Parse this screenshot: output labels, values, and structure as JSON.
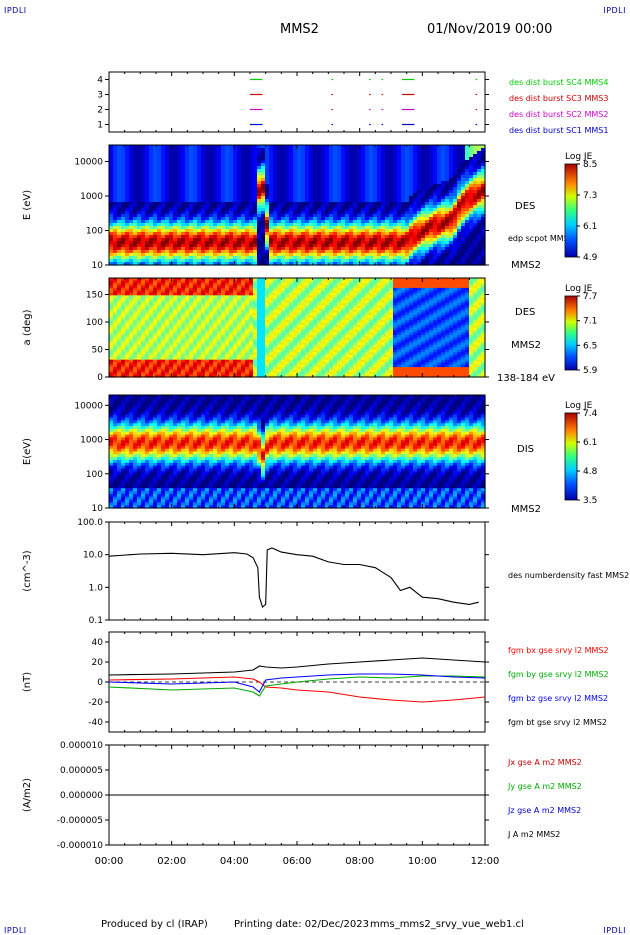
{
  "header": {
    "title": "MMS2",
    "datetime": "01/Nov/2019 00:00",
    "corner_left_top": "IPDLI",
    "corner_right_top": "IPDLI",
    "corner_left_bottom": "IPDLI",
    "corner_right_bottom": "IPDLI"
  },
  "footer": {
    "produced_by": "Produced by cl (IRAP)",
    "printing_date": "Printing date: 02/Dec/2023",
    "filename": "mms_mms2_srvy_vue_web1.cl"
  },
  "chart_data": [
    {
      "type": "scatter",
      "panel": "burst-flags",
      "ylim": [
        0.5,
        4.5
      ],
      "yticks": [
        "1",
        "2",
        "3",
        "4"
      ],
      "xlim": [
        0,
        12
      ],
      "series": [
        {
          "name": "des dist burst SC1 MMS1",
          "color": "#0000cc",
          "level": 1,
          "segments": [
            [
              4.5,
              4.9
            ],
            [
              7.1,
              7.15
            ],
            [
              8.3,
              8.35
            ],
            [
              8.7,
              8.75
            ],
            [
              9.35,
              9.75
            ],
            [
              11.7,
              11.75
            ]
          ]
        },
        {
          "name": "des dist burst SC2 MMS2",
          "color": "#cc00cc",
          "level": 2,
          "segments": [
            [
              4.5,
              4.9
            ],
            [
              7.1,
              7.15
            ],
            [
              8.3,
              8.35
            ],
            [
              8.7,
              8.75
            ],
            [
              9.35,
              9.75
            ],
            [
              11.7,
              11.75
            ]
          ]
        },
        {
          "name": "des dist burst SC3 MMS3",
          "color": "#cc0000",
          "level": 3,
          "segments": [
            [
              4.5,
              4.9
            ],
            [
              7.1,
              7.15
            ],
            [
              8.3,
              8.35
            ],
            [
              8.7,
              8.75
            ],
            [
              9.35,
              9.75
            ],
            [
              11.7,
              11.75
            ]
          ]
        },
        {
          "name": "des dist burst SC4 MMS4",
          "color": "#00cc00",
          "level": 4,
          "segments": [
            [
              4.5,
              4.9
            ],
            [
              7.1,
              7.15
            ],
            [
              8.3,
              8.35
            ],
            [
              8.7,
              8.75
            ],
            [
              9.35,
              9.75
            ],
            [
              11.7,
              11.75
            ]
          ]
        }
      ]
    },
    {
      "type": "heatmap",
      "panel": "des-energy",
      "ylabel": "E (eV)",
      "yscale": "log",
      "yticks": [
        "10",
        "100",
        "1000",
        "10000"
      ],
      "ylim": [
        10,
        30000
      ],
      "side_labels": [
        "DES",
        "MMS2"
      ],
      "overlay_label": "edp scpot MMS2",
      "colorbar": {
        "title": "Log JE",
        "range": [
          4.9,
          8.5
        ],
        "ticks": [
          "8.5",
          "7.3",
          "6.1",
          "4.9"
        ]
      },
      "peak_energy": [
        {
          "t": 0,
          "e": 45
        },
        {
          "t": 4.7,
          "e": 45
        },
        {
          "t": 4.85,
          "e": 2500
        },
        {
          "t": 5.05,
          "e": 45
        },
        {
          "t": 9.5,
          "e": 45
        },
        {
          "t": 11,
          "e": 200
        },
        {
          "t": 12,
          "e": 1500
        }
      ]
    },
    {
      "type": "heatmap",
      "panel": "des-pitch-angle",
      "ylabel": "a (deg)",
      "yticks": [
        "0",
        "50",
        "100",
        "150"
      ],
      "ylim": [
        0,
        180
      ],
      "side_labels": [
        "DES",
        "MMS2"
      ],
      "energy_range_label": "138-184 eV",
      "colorbar": {
        "title": "Log JE",
        "range": [
          5.9,
          7.7
        ],
        "ticks": [
          "7.7",
          "7.1",
          "6.5",
          "5.9"
        ]
      }
    },
    {
      "type": "heatmap",
      "panel": "dis-energy",
      "ylabel": "E(eV)",
      "yscale": "log",
      "yticks": [
        "10",
        "100",
        "1000",
        "10000"
      ],
      "ylim": [
        10,
        20000
      ],
      "side_labels": [
        "DIS",
        "MMS2"
      ],
      "colorbar": {
        "title": "Log JE",
        "range": [
          3.5,
          7.4
        ],
        "ticks": [
          "7.4",
          "6.1",
          "4.8",
          "3.5"
        ]
      },
      "peak_energy": [
        {
          "t": 0,
          "e": 800
        },
        {
          "t": 4.7,
          "e": 800
        },
        {
          "t": 4.9,
          "e": 300
        },
        {
          "t": 5.1,
          "e": 800
        },
        {
          "t": 9.6,
          "e": 800
        },
        {
          "t": 12,
          "e": 800
        }
      ]
    },
    {
      "type": "line",
      "panel": "density",
      "ylabel": "(cm^-3)",
      "yscale": "log",
      "yticks": [
        "0.1",
        "1.0",
        "10.0",
        "100.0"
      ],
      "ylim": [
        0.1,
        100
      ],
      "series": [
        {
          "name": "des numberdensity fast MMS2",
          "color": "#000000",
          "x": [
            0,
            1,
            2,
            3,
            4,
            4.4,
            4.6,
            4.75,
            4.8,
            4.9,
            5.0,
            5.05,
            5.2,
            5.5,
            6.0,
            6.5,
            7.0,
            7.5,
            8.0,
            8.5,
            9.0,
            9.3,
            9.6,
            10.0,
            10.5,
            11.0,
            11.5,
            11.8
          ],
          "y": [
            9.0,
            10.5,
            11.0,
            10.0,
            11.5,
            10.5,
            8.0,
            4.0,
            0.5,
            0.25,
            0.3,
            14.0,
            16.0,
            12.0,
            10.0,
            9.0,
            6.0,
            5.0,
            5.0,
            4.0,
            2.0,
            0.8,
            1.0,
            0.5,
            0.45,
            0.35,
            0.3,
            0.35
          ]
        }
      ]
    },
    {
      "type": "line",
      "panel": "magnetic-field",
      "ylabel": "(nT)",
      "yticks": [
        "-40",
        "-20",
        "0",
        "20",
        "40"
      ],
      "ylim": [
        -50,
        50
      ],
      "series": [
        {
          "name": "fgm bx gse srvy l2 MMS2",
          "color": "#ff0000",
          "x": [
            0,
            2,
            4,
            4.6,
            4.8,
            5.0,
            5.5,
            6,
            7,
            8,
            9,
            10,
            11,
            12
          ],
          "y": [
            2,
            3,
            5,
            3,
            0,
            -5,
            -6,
            -8,
            -10,
            -15,
            -18,
            -20,
            -18,
            -15
          ]
        },
        {
          "name": "fgm by gse srvy l2 MMS2",
          "color": "#00aa00",
          "x": [
            0,
            2,
            4,
            4.6,
            4.8,
            5.0,
            5.5,
            6,
            7,
            8,
            9,
            10,
            11,
            12
          ],
          "y": [
            -5,
            -8,
            -6,
            -10,
            -14,
            -4,
            -2,
            0,
            3,
            5,
            4,
            6,
            6,
            5
          ]
        },
        {
          "name": "fgm bz gse srvy l2 MMS2",
          "color": "#0000ff",
          "x": [
            0,
            2,
            4,
            4.6,
            4.8,
            5.0,
            5.5,
            6,
            7,
            8,
            9,
            10,
            11,
            12
          ],
          "y": [
            0,
            -2,
            0,
            -5,
            -10,
            2,
            4,
            5,
            7,
            8,
            8,
            7,
            5,
            4
          ]
        },
        {
          "name": "fgm bt gse srvy l2 MMS2",
          "color": "#000000",
          "x": [
            0,
            2,
            4,
            4.6,
            4.8,
            5.0,
            5.5,
            6,
            7,
            8,
            9,
            10,
            11,
            12
          ],
          "y": [
            7,
            8,
            10,
            12,
            16,
            15,
            14,
            15,
            18,
            20,
            22,
            24,
            22,
            20
          ]
        }
      ]
    },
    {
      "type": "line",
      "panel": "current-density",
      "ylabel": "(A/m2)",
      "yticks": [
        "-0.000010",
        "-0.000005",
        "0.000000",
        "0.000005",
        "0.000010"
      ],
      "ylim": [
        -1e-05,
        1e-05
      ],
      "series": [
        {
          "name": "Jx gse A m2 MMS2",
          "color": "#cc0000",
          "x": [
            0,
            12
          ],
          "y": [
            0,
            0
          ]
        },
        {
          "name": "Jy gse A m2 MMS2",
          "color": "#00aa00",
          "x": [
            0,
            12
          ],
          "y": [
            0,
            0
          ]
        },
        {
          "name": "Jz gse A m2 MMS2",
          "color": "#0000cc",
          "x": [
            0,
            12
          ],
          "y": [
            0,
            0
          ]
        },
        {
          "name": "J A m2 MMS2",
          "color": "#000000",
          "x": [
            0,
            12
          ],
          "y": [
            0,
            0
          ]
        }
      ]
    }
  ],
  "time_axis": {
    "xlim": [
      0,
      12
    ],
    "tick_labels": [
      "00:00",
      "02:00",
      "04:00",
      "06:00",
      "08:00",
      "10:00",
      "12:00"
    ]
  }
}
